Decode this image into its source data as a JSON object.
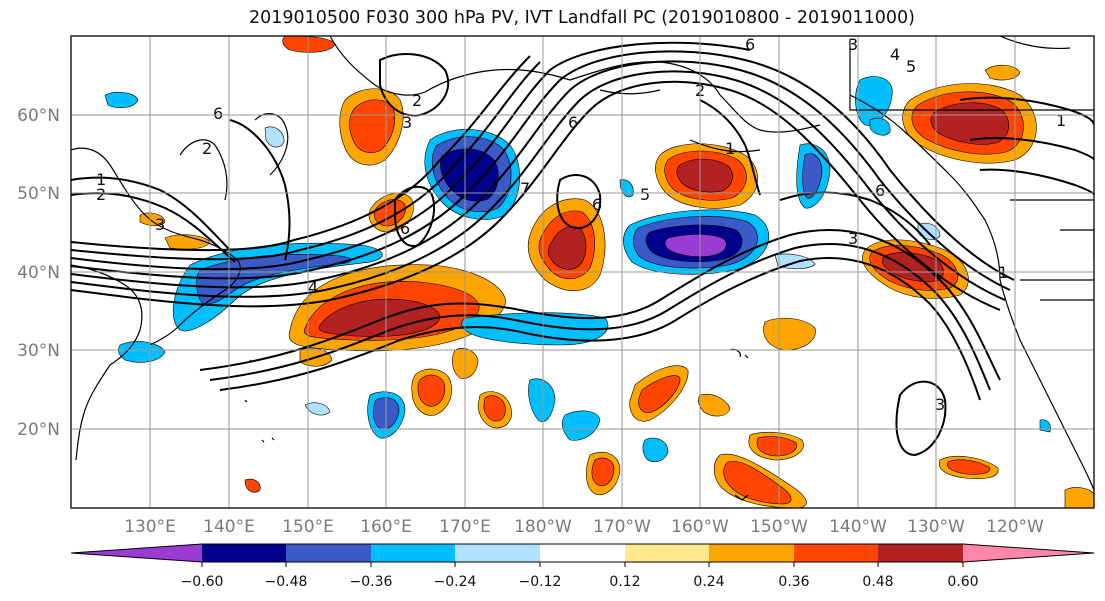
{
  "title": "2019010500 F030 300 hPa PV, IVT Landfall PC (2019010800 - 2019011000)",
  "lat_labels": [
    "60°N",
    "50°N",
    "40°N",
    "30°N",
    "20°N"
  ],
  "lon_labels": [
    "130°E",
    "140°E",
    "150°E",
    "160°E",
    "170°E",
    "180°W",
    "170°W",
    "160°W",
    "150°W",
    "140°W",
    "130°W",
    "120°W"
  ],
  "colorbar": {
    "ticks": [
      "−0.60",
      "−0.48",
      "−0.36",
      "−0.24",
      "−0.12",
      "0.12",
      "0.24",
      "0.36",
      "0.48",
      "0.60"
    ],
    "colors": [
      "#9a3bd3",
      "#00008b",
      "#3a5ac8",
      "#00bfff",
      "#b0e2ff",
      "#ffffff",
      "#ffe98a",
      "#ffa500",
      "#ff4500",
      "#b22222",
      "#ff88aa"
    ]
  },
  "contour_labels": [
    "6",
    "2",
    "3",
    "2",
    "6",
    "1",
    "5",
    "6",
    "1",
    "2",
    "3",
    "7",
    "4",
    "3",
    "6",
    "1",
    "2",
    "5",
    "4",
    "3",
    "6",
    "6",
    "3",
    "1"
  ]
}
